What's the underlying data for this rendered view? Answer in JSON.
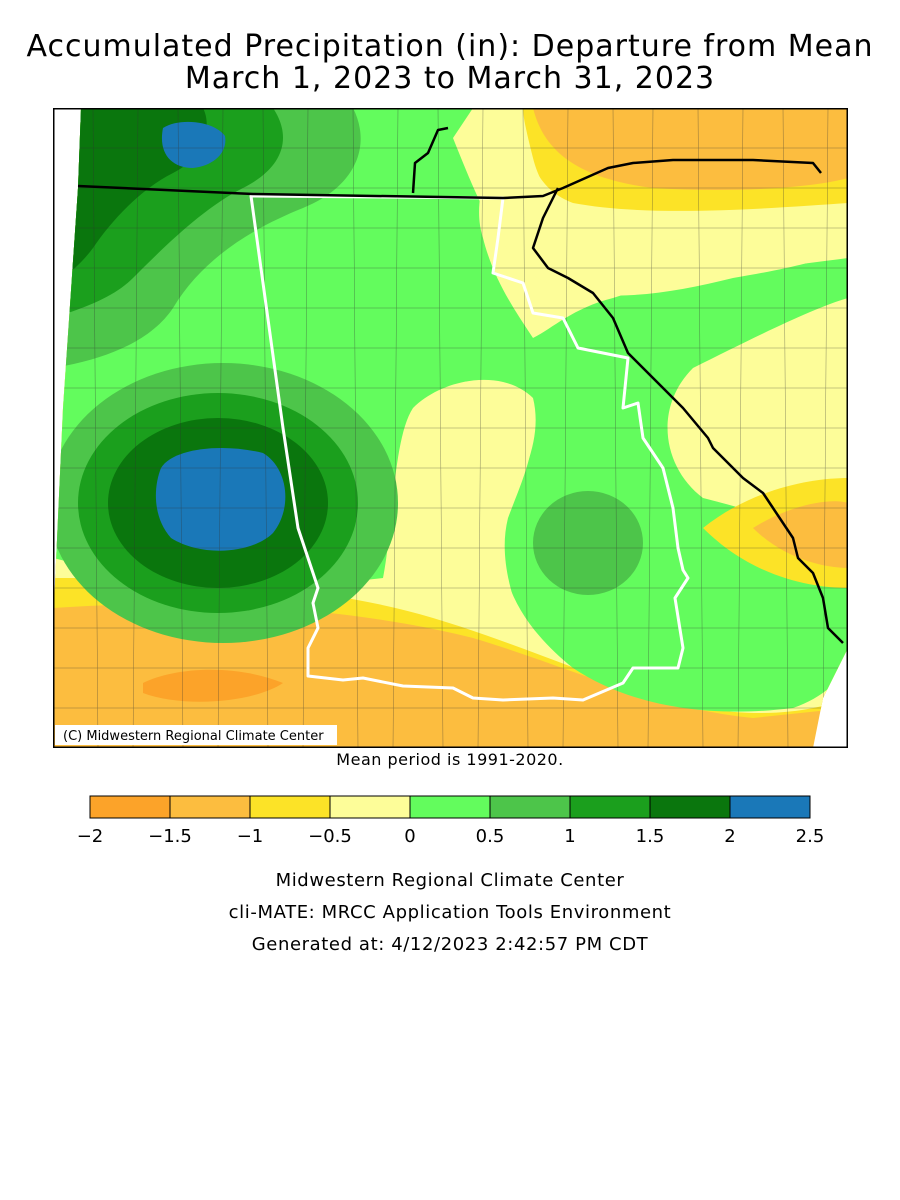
{
  "title_line1": "Accumulated Precipitation (in): Departure from Mean",
  "title_line2": "March 1, 2023 to March 31, 2023",
  "copyright": "(C) Midwestern Regional Climate Center",
  "mean_period": "Mean period is 1991-2020.",
  "legend": {
    "colors": [
      "#fca329",
      "#fcbd3f",
      "#fce327",
      "#fdfd99",
      "#63fc5d",
      "#4dc54a",
      "#1b9f1d",
      "#0a760d",
      "#1a78b8"
    ],
    "labels": [
      "−2",
      "−1.5",
      "−1",
      "−0.5",
      "0",
      "0.5",
      "1",
      "1.5",
      "2",
      "2.5"
    ]
  },
  "footer": {
    "line1": "Midwestern Regional Climate Center",
    "line2": "cli-MATE: MRCC Application Tools Environment",
    "line3": "Generated at: 4/12/2023 2:42:57 PM CDT"
  }
}
